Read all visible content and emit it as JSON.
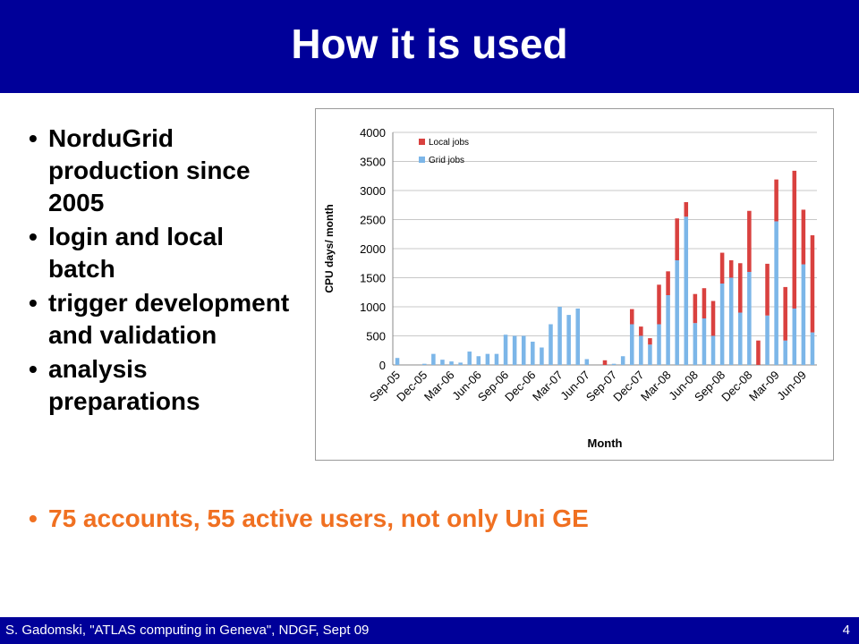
{
  "slide": {
    "title": "How it is used",
    "bullets": [
      "NorduGrid production since 2005",
      "login and local batch",
      "trigger development and validation",
      "analysis preparations"
    ],
    "highlight": "75 accounts, 55 active users, not only Uni GE",
    "footer": "S. Gadomski, \"ATLAS computing in Geneva\", NDGF, Sept 09",
    "page_number": "4",
    "colors": {
      "header_bg": "#000099",
      "highlight": "#f07021",
      "local_jobs": "#d9413f",
      "grid_jobs": "#7cb6e8"
    }
  },
  "chart_data": {
    "type": "bar",
    "stacked": true,
    "xlabel": "Month",
    "ylabel": "CPU days/ month",
    "ylim": [
      0,
      4000
    ],
    "yticks": [
      "0",
      "500",
      "1000",
      "1500",
      "2000",
      "2500",
      "3000",
      "3500",
      "4000"
    ],
    "xtick_labels": [
      "Sep-05",
      "Dec-05",
      "Mar-06",
      "Jun-06",
      "Sep-06",
      "Dec-06",
      "Mar-07",
      "Jun-07",
      "Sep-07",
      "Dec-07",
      "Mar-08",
      "Jun-08",
      "Sep-08",
      "Dec-08",
      "Mar-09",
      "Jun-09"
    ],
    "legend_position": "top-left",
    "grid": true,
    "categories": [
      "Sep-05",
      "Oct-05",
      "Nov-05",
      "Dec-05",
      "Jan-06",
      "Feb-06",
      "Mar-06",
      "Apr-06",
      "May-06",
      "Jun-06",
      "Jul-06",
      "Aug-06",
      "Sep-06",
      "Oct-06",
      "Nov-06",
      "Dec-06",
      "Jan-07",
      "Feb-07",
      "Mar-07",
      "Apr-07",
      "May-07",
      "Jun-07",
      "Jul-07",
      "Aug-07",
      "Sep-07",
      "Oct-07",
      "Nov-07",
      "Dec-07",
      "Jan-08",
      "Feb-08",
      "Mar-08",
      "Apr-08",
      "May-08",
      "Jun-08",
      "Jul-08",
      "Aug-08",
      "Sep-08",
      "Oct-08",
      "Nov-08",
      "Dec-08",
      "Jan-09",
      "Feb-09",
      "Mar-09",
      "Apr-09",
      "May-09",
      "Jun-09",
      "Jul-09"
    ],
    "series": [
      {
        "name": "Grid jobs",
        "values": [
          120,
          0,
          0,
          20,
          190,
          90,
          60,
          40,
          230,
          150,
          190,
          190,
          520,
          500,
          500,
          400,
          300,
          700,
          1000,
          860,
          970,
          100,
          0,
          0,
          20,
          150,
          700,
          500,
          350,
          700,
          1200,
          1800,
          2550,
          720,
          800,
          500,
          1400,
          1500,
          900,
          1600,
          0,
          850,
          2470,
          420,
          970,
          1730,
          560
        ]
      },
      {
        "name": "Local jobs",
        "values": [
          0,
          0,
          0,
          0,
          0,
          0,
          0,
          0,
          0,
          0,
          0,
          0,
          0,
          0,
          0,
          0,
          0,
          0,
          0,
          0,
          0,
          0,
          0,
          80,
          0,
          0,
          260,
          160,
          110,
          680,
          410,
          720,
          250,
          500,
          520,
          600,
          530,
          300,
          850,
          1050,
          420,
          890,
          720,
          920,
          2370,
          940,
          1670
        ]
      }
    ]
  }
}
